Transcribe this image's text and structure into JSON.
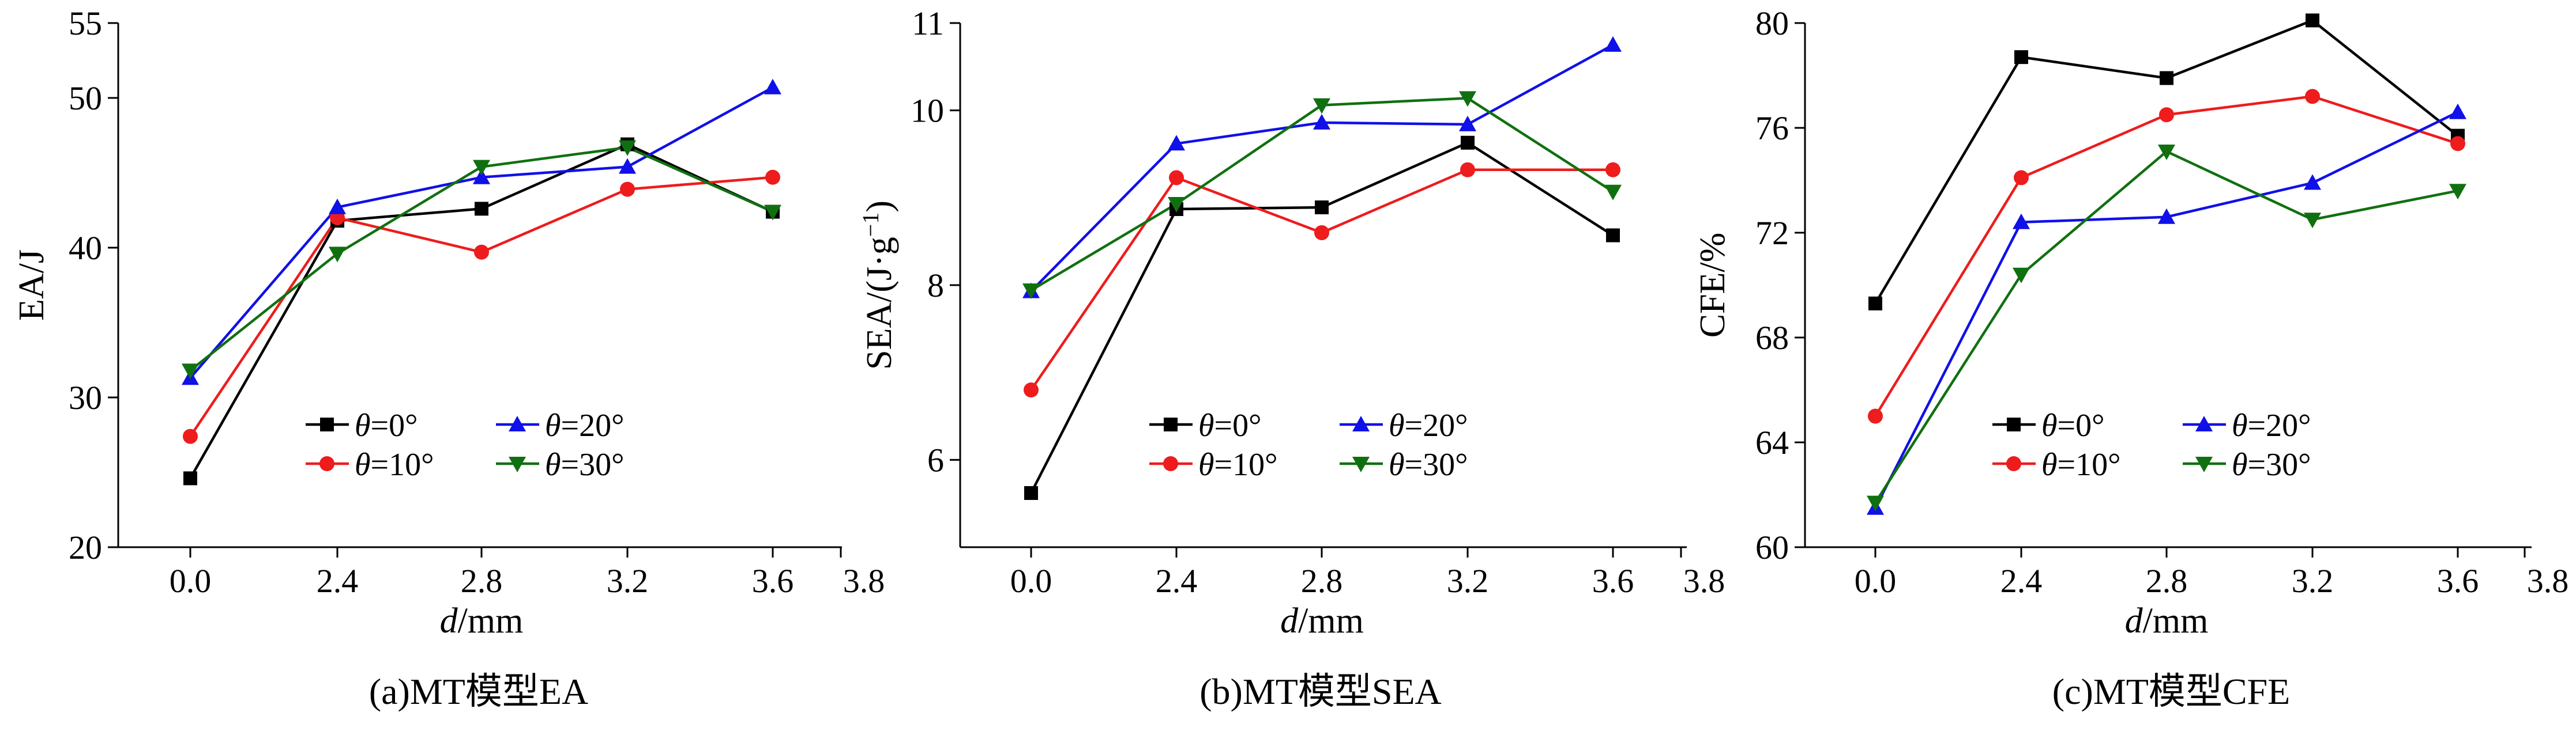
{
  "colors": {
    "theta0": "#000000",
    "theta10": "#ee1c1c",
    "theta20": "#1010e8",
    "theta30": "#107010"
  },
  "legend": {
    "theta_symbol": "θ",
    "eq0": "=0°",
    "eq10": "=10°",
    "eq20": "=20°",
    "eq30": "=30°"
  },
  "chart_data": [
    {
      "type": "line",
      "caption": "(a)MT模型EA",
      "xlabel_italic": "d",
      "xlabel_unit": "/mm",
      "ylabel": "EA/J",
      "categories": [
        "0.0",
        "2.4",
        "2.8",
        "3.2",
        "3.6"
      ],
      "x_extra_tick": "3.8",
      "ylim": [
        20,
        55
      ],
      "yticks": [
        20,
        30,
        40,
        50,
        55
      ],
      "ytick_labels": [
        "20",
        "30",
        "40",
        "50",
        "55"
      ],
      "series": [
        {
          "name": "θ=0°",
          "color": "#000000",
          "marker": "square",
          "values": [
            24.6,
            41.8,
            42.6,
            46.9,
            42.4
          ]
        },
        {
          "name": "θ=10°",
          "color": "#ee1c1c",
          "marker": "circle",
          "values": [
            27.4,
            42.0,
            39.7,
            43.9,
            44.7
          ]
        },
        {
          "name": "θ=20°",
          "color": "#1010e8",
          "marker": "triangle-up",
          "values": [
            31.3,
            42.7,
            44.7,
            45.4,
            50.7
          ]
        },
        {
          "name": "θ=30°",
          "color": "#107010",
          "marker": "triangle-down",
          "values": [
            31.8,
            39.6,
            45.4,
            46.7,
            42.4
          ]
        }
      ]
    },
    {
      "type": "line",
      "caption": "(b)MT模型SEA",
      "xlabel_italic": "d",
      "xlabel_unit": "/mm",
      "ylabel": "SEA/(J·g",
      "ylabel_sup": "−1",
      "ylabel_close": ")",
      "categories": [
        "0.0",
        "2.4",
        "2.8",
        "3.2",
        "3.6"
      ],
      "x_extra_tick": "3.8",
      "ylim": [
        5,
        11
      ],
      "yticks": [
        6,
        8,
        10,
        11
      ],
      "ytick_labels": [
        "6",
        "8",
        "10",
        "11"
      ],
      "series": [
        {
          "name": "θ=0°",
          "color": "#000000",
          "marker": "square",
          "values": [
            5.62,
            8.87,
            8.89,
            9.63,
            8.57
          ]
        },
        {
          "name": "θ=10°",
          "color": "#ee1c1c",
          "marker": "circle",
          "values": [
            6.8,
            9.23,
            8.6,
            9.32,
            9.32
          ]
        },
        {
          "name": "θ=20°",
          "color": "#1010e8",
          "marker": "triangle-up",
          "values": [
            7.93,
            9.62,
            9.86,
            9.84,
            10.75
          ]
        },
        {
          "name": "θ=30°",
          "color": "#107010",
          "marker": "triangle-down",
          "values": [
            7.94,
            8.93,
            10.06,
            10.14,
            9.07
          ]
        }
      ]
    },
    {
      "type": "line",
      "caption": "(c)MT模型CFE",
      "xlabel_italic": "d",
      "xlabel_unit": "/mm",
      "ylabel": "CFE/%",
      "categories": [
        "0.0",
        "2.4",
        "2.8",
        "3.2",
        "3.6"
      ],
      "x_extra_tick": "3.8",
      "ylim": [
        60,
        80
      ],
      "yticks": [
        60,
        64,
        68,
        72,
        76,
        80
      ],
      "ytick_labels": [
        "60",
        "64",
        "68",
        "72",
        "76",
        "80"
      ],
      "series": [
        {
          "name": "θ=0°",
          "color": "#000000",
          "marker": "square",
          "values": [
            69.3,
            78.7,
            77.9,
            80.1,
            75.7
          ]
        },
        {
          "name": "θ=10°",
          "color": "#ee1c1c",
          "marker": "circle",
          "values": [
            65.0,
            74.1,
            76.5,
            77.2,
            75.4
          ]
        },
        {
          "name": "θ=20°",
          "color": "#1010e8",
          "marker": "triangle-up",
          "values": [
            61.5,
            72.4,
            72.6,
            73.9,
            76.6
          ]
        },
        {
          "name": "θ=30°",
          "color": "#107010",
          "marker": "triangle-down",
          "values": [
            61.7,
            70.4,
            75.1,
            72.5,
            73.6
          ]
        }
      ]
    }
  ]
}
